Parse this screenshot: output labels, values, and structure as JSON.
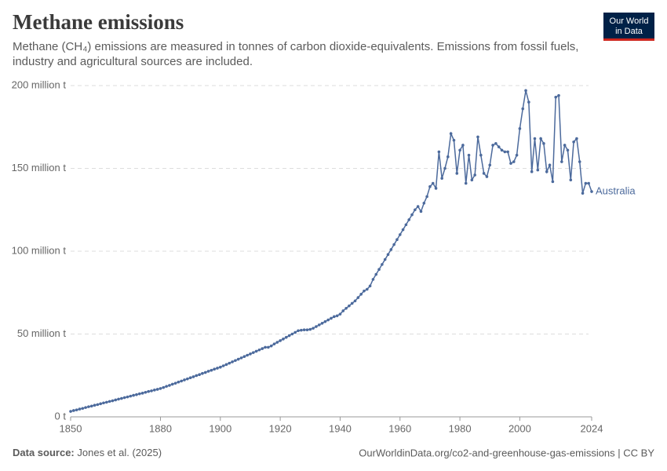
{
  "chart_data": {
    "type": "line",
    "title": "Methane emissions",
    "subtitle": "Methane (CH₄) emissions are measured in tonnes of carbon dioxide-equivalents. Emissions from fossil fuels, industry and agricultural sources are included.",
    "logo": [
      "Our World",
      "in Data"
    ],
    "source_label": "Data source:",
    "source_text": "Jones et al. (2025)",
    "footer_right": "OurWorldinData.org/co2-and-greenhouse-gas-emissions | CC BY",
    "x": [
      1850,
      1851,
      1852,
      1853,
      1854,
      1855,
      1856,
      1857,
      1858,
      1859,
      1860,
      1861,
      1862,
      1863,
      1864,
      1865,
      1866,
      1867,
      1868,
      1869,
      1870,
      1871,
      1872,
      1873,
      1874,
      1875,
      1876,
      1877,
      1878,
      1879,
      1880,
      1881,
      1882,
      1883,
      1884,
      1885,
      1886,
      1887,
      1888,
      1889,
      1890,
      1891,
      1892,
      1893,
      1894,
      1895,
      1896,
      1897,
      1898,
      1899,
      1900,
      1901,
      1902,
      1903,
      1904,
      1905,
      1906,
      1907,
      1908,
      1909,
      1910,
      1911,
      1912,
      1913,
      1914,
      1915,
      1916,
      1917,
      1918,
      1919,
      1920,
      1921,
      1922,
      1923,
      1924,
      1925,
      1926,
      1927,
      1928,
      1929,
      1930,
      1931,
      1932,
      1933,
      1934,
      1935,
      1936,
      1937,
      1938,
      1939,
      1940,
      1941,
      1942,
      1943,
      1944,
      1945,
      1946,
      1947,
      1948,
      1949,
      1950,
      1951,
      1952,
      1953,
      1954,
      1955,
      1956,
      1957,
      1958,
      1959,
      1960,
      1961,
      1962,
      1963,
      1964,
      1965,
      1966,
      1967,
      1968,
      1969,
      1970,
      1971,
      1972,
      1973,
      1974,
      1975,
      1976,
      1977,
      1978,
      1979,
      1980,
      1981,
      1982,
      1983,
      1984,
      1985,
      1986,
      1987,
      1988,
      1989,
      1990,
      1991,
      1992,
      1993,
      1994,
      1995,
      1996,
      1997,
      1998,
      1999,
      2000,
      2001,
      2002,
      2003,
      2004,
      2005,
      2006,
      2007,
      2008,
      2009,
      2010,
      2011,
      2012,
      2013,
      2014,
      2015,
      2016,
      2017,
      2018,
      2019,
      2020,
      2021,
      2022,
      2023,
      2024
    ],
    "series": [
      {
        "name": "Australia",
        "color": "#4c6a9c",
        "values": [
          3.3,
          3.8,
          4.2,
          4.7,
          5.1,
          5.6,
          6.1,
          6.5,
          7.0,
          7.4,
          7.9,
          8.4,
          8.8,
          9.3,
          9.7,
          10.2,
          10.7,
          11.1,
          11.6,
          12.0,
          12.5,
          13.0,
          13.4,
          13.9,
          14.3,
          14.8,
          15.3,
          15.7,
          16.2,
          16.6,
          17.1,
          17.7,
          18.4,
          19.0,
          19.7,
          20.3,
          21.0,
          21.6,
          22.3,
          22.9,
          23.6,
          24.2,
          24.9,
          25.5,
          26.2,
          26.8,
          27.5,
          28.1,
          28.8,
          29.4,
          30.0,
          30.8,
          31.6,
          32.4,
          33.2,
          34.0,
          34.8,
          35.6,
          36.4,
          37.2,
          38.0,
          38.8,
          39.6,
          40.4,
          41.2,
          42.0,
          42.0,
          42.8,
          44.0,
          45.0,
          46.0,
          47,
          48,
          49,
          50,
          51,
          52,
          52.3,
          52.5,
          52.5,
          52.8,
          53.5,
          54.5,
          55.5,
          56.5,
          57.5,
          58.5,
          59.5,
          60.5,
          61,
          62,
          64,
          65.5,
          67,
          68.5,
          70,
          72,
          74,
          76,
          77,
          79,
          83,
          86,
          89,
          92,
          95,
          98,
          101,
          104,
          107,
          110,
          113,
          116,
          119,
          122,
          125,
          127,
          124,
          129,
          133,
          139,
          141,
          138,
          160,
          144,
          150,
          157,
          171,
          167,
          147,
          161,
          164,
          141,
          158,
          143,
          146,
          169,
          158,
          147,
          145,
          152,
          164,
          165,
          163,
          161,
          160,
          160,
          153,
          154,
          158,
          174,
          186,
          197,
          190,
          148,
          168,
          149,
          168,
          165,
          148,
          152,
          142,
          193,
          194,
          154,
          164,
          161,
          143,
          166,
          168,
          154,
          135,
          141,
          141,
          136
        ]
      }
    ],
    "xlim": [
      1850,
      2024
    ],
    "xticks": [
      1850,
      1880,
      1900,
      1920,
      1940,
      1960,
      1980,
      2000,
      2024
    ],
    "ylim": [
      0,
      200
    ],
    "yticks": [
      {
        "value": 0,
        "label": "0 t"
      },
      {
        "value": 50,
        "label": "50 million t"
      },
      {
        "value": 100,
        "label": "100 million t"
      },
      {
        "value": 150,
        "label": "150 million t"
      },
      {
        "value": 200,
        "label": "200 million t"
      }
    ],
    "grid": true
  }
}
